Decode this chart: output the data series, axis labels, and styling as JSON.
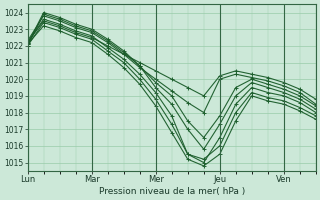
{
  "background_color": "#cce8d8",
  "plot_bg_color": "#cce8d8",
  "grid_color": "#99ccaa",
  "line_color": "#1a5c2a",
  "xlabel": "Pression niveau de la mer( hPa )",
  "ylim": [
    1014.5,
    1024.5
  ],
  "yticks": [
    1015,
    1016,
    1017,
    1018,
    1019,
    1020,
    1021,
    1022,
    1023,
    1024
  ],
  "xtick_labels": [
    "Lun",
    "Mar",
    "Mer",
    "Jeu",
    "Ven"
  ],
  "xtick_positions": [
    0,
    24,
    48,
    72,
    96
  ],
  "xlim": [
    0,
    108
  ],
  "series": [
    {
      "x": [
        0,
        6,
        12,
        18,
        24,
        30,
        36,
        42,
        48,
        54,
        60,
        66,
        72,
        78,
        84,
        90,
        96,
        102,
        108
      ],
      "y": [
        1022.2,
        1023.5,
        1023.2,
        1022.8,
        1022.5,
        1022.0,
        1021.5,
        1021.0,
        1020.5,
        1020.0,
        1019.5,
        1019.0,
        1020.2,
        1020.5,
        1020.3,
        1020.1,
        1019.8,
        1019.4,
        1018.8
      ]
    },
    {
      "x": [
        0,
        6,
        12,
        18,
        24,
        30,
        36,
        42,
        48,
        54,
        60,
        66,
        72,
        78,
        84,
        90,
        96,
        102,
        108
      ],
      "y": [
        1022.3,
        1023.8,
        1023.5,
        1023.1,
        1022.8,
        1022.2,
        1021.5,
        1020.7,
        1020.0,
        1019.3,
        1018.6,
        1018.0,
        1020.0,
        1020.3,
        1020.1,
        1019.9,
        1019.6,
        1019.2,
        1018.5
      ]
    },
    {
      "x": [
        0,
        6,
        12,
        18,
        24,
        30,
        36,
        42,
        48,
        54,
        60,
        66,
        72,
        78,
        84,
        90,
        96,
        102,
        108
      ],
      "y": [
        1022.0,
        1023.9,
        1023.6,
        1023.2,
        1022.9,
        1022.3,
        1021.6,
        1020.8,
        1019.8,
        1019.0,
        1017.5,
        1016.5,
        1017.8,
        1019.5,
        1020.0,
        1019.7,
        1019.4,
        1019.0,
        1018.4
      ]
    },
    {
      "x": [
        0,
        6,
        12,
        18,
        24,
        30,
        36,
        42,
        48,
        54,
        60,
        66,
        72,
        78,
        84,
        90,
        96,
        102,
        108
      ],
      "y": [
        1022.1,
        1024.0,
        1023.7,
        1023.3,
        1023.0,
        1022.4,
        1021.7,
        1020.8,
        1019.5,
        1018.5,
        1017.0,
        1015.8,
        1017.3,
        1019.0,
        1019.8,
        1019.5,
        1019.2,
        1018.8,
        1018.2
      ]
    },
    {
      "x": [
        0,
        6,
        12,
        18,
        24,
        30,
        36,
        42,
        48,
        54,
        60,
        66,
        72,
        78,
        84,
        90,
        96,
        102,
        108
      ],
      "y": [
        1022.2,
        1023.6,
        1023.3,
        1022.9,
        1022.6,
        1021.9,
        1021.2,
        1020.3,
        1019.2,
        1017.8,
        1015.5,
        1015.0,
        1016.5,
        1018.5,
        1019.5,
        1019.2,
        1019.0,
        1018.6,
        1018.0
      ]
    },
    {
      "x": [
        0,
        6,
        12,
        18,
        24,
        30,
        36,
        42,
        48,
        54,
        60,
        66,
        72,
        78,
        84,
        90,
        96,
        102,
        108
      ],
      "y": [
        1022.0,
        1023.4,
        1023.1,
        1022.7,
        1022.4,
        1021.7,
        1021.0,
        1020.0,
        1018.8,
        1017.3,
        1015.5,
        1015.2,
        1016.0,
        1018.0,
        1019.2,
        1018.9,
        1018.7,
        1018.3,
        1017.8
      ]
    },
    {
      "x": [
        0,
        6,
        12,
        18,
        24,
        30,
        36,
        42,
        48,
        54,
        60,
        66,
        72,
        78,
        84,
        90,
        96,
        102,
        108
      ],
      "y": [
        1022.1,
        1023.2,
        1022.9,
        1022.5,
        1022.2,
        1021.5,
        1020.7,
        1019.7,
        1018.4,
        1016.8,
        1015.2,
        1014.8,
        1015.5,
        1017.5,
        1019.0,
        1018.7,
        1018.5,
        1018.1,
        1017.6
      ]
    }
  ]
}
